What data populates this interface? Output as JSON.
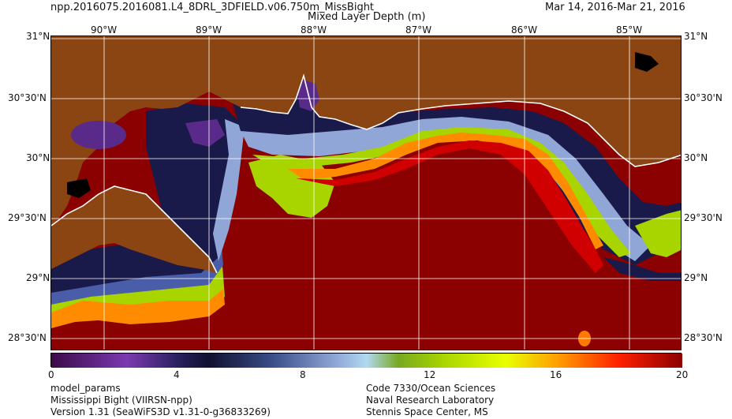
{
  "header": {
    "file_name": "npp.2016075.2016081.L4_8DRL_3DFIELD.v06.750m_MissBight",
    "variable": "Mixed Layer Depth (m)",
    "date_range": "Mar 14, 2016-Mar 21, 2016"
  },
  "map": {
    "top_lon_labels": [
      "90°W",
      "89°W",
      "88°W",
      "87°W",
      "86°W",
      "85°W"
    ],
    "left_lat_labels": [
      "31°N",
      "30°30'N",
      "30°N",
      "29°30'N",
      "29°N",
      "28°30'N"
    ],
    "right_lat_labels": [
      "31°N",
      "30°30'N",
      "30°N",
      "29°30'N",
      "29°N",
      "28°30'N"
    ],
    "colors": {
      "land": "#8b4513",
      "deep_mld": "#8b0000",
      "shallow_mld": "#22104a",
      "mid_mld": "#a8d400",
      "coastline": "#ffffff"
    }
  },
  "colorbar": {
    "min": 0,
    "max": 20,
    "tick_labels": [
      "0",
      "4",
      "8",
      "12",
      "16",
      "20"
    ]
  },
  "footer": {
    "left": [
      "model_params",
      "Mississippi Bight (VIIRSN-npp)",
      "Version 1.31 (SeaWiFS3D v1.31-0-g36833269)"
    ],
    "right": [
      "Code 7330/Ocean Sciences",
      "Naval Research Laboratory",
      "Stennis Space Center, MS"
    ]
  }
}
